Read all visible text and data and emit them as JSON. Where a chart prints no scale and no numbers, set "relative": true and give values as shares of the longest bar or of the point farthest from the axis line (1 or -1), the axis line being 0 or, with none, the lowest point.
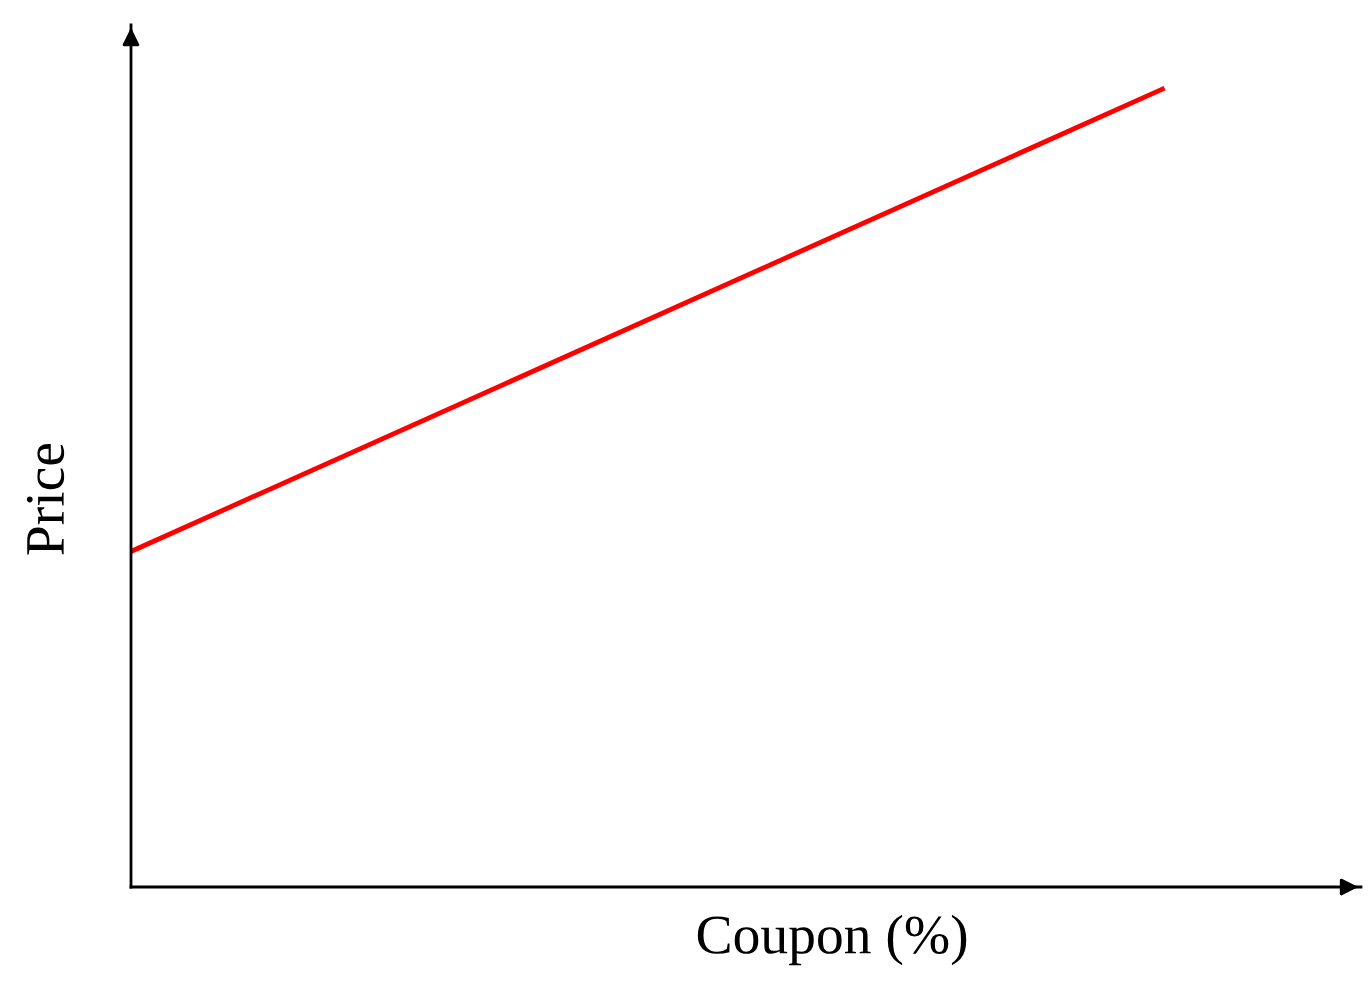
{
  "chart_data": {
    "type": "line",
    "relative": true,
    "xlabel": "Coupon (%)",
    "ylabel": "Price",
    "categories": [
      null,
      null
    ],
    "series": [
      {
        "color": "#ff0000",
        "values": [
          0.42,
          1
        ]
      }
    ],
    "grid": false,
    "legend": false,
    "marker": "none",
    "line_style": "solid",
    "tick_labels": false
  }
}
